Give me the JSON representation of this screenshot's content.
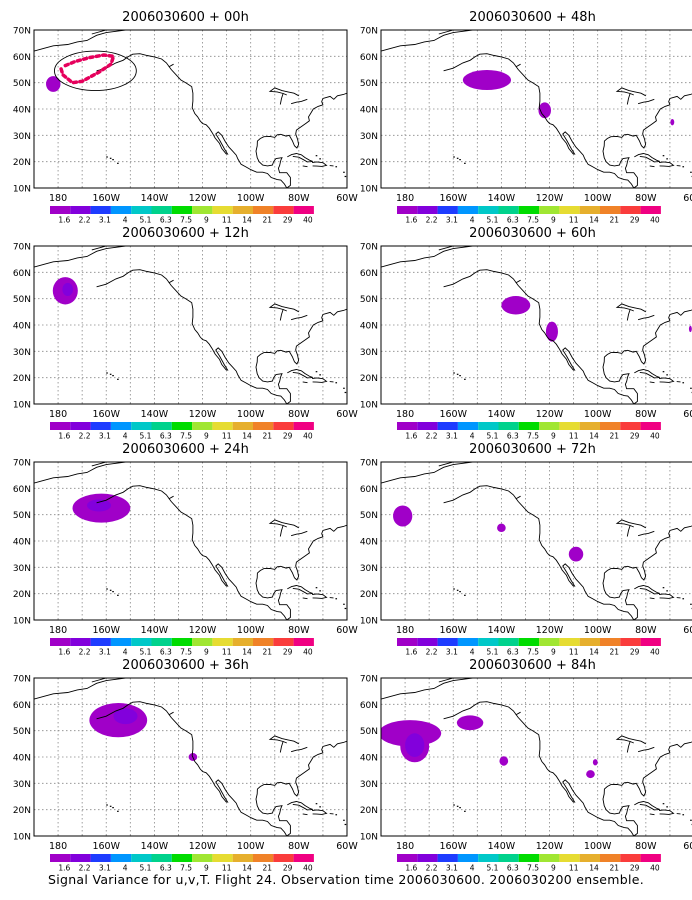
{
  "figure": {
    "caption": "Signal Variance for u,v,T. Flight 24. Observation time 2006030600. 2006030200 ensemble."
  },
  "colors": {
    "coast": "#000000",
    "grid": "#888888",
    "frame": "#000000",
    "flight_track": "#e6005c"
  },
  "chart_data": [
    {
      "type": "heatmap",
      "title": "2006030600 + 00h",
      "ylim": [
        10,
        70
      ],
      "xlim": [
        -190,
        -60
      ],
      "x_ticks": [
        "180",
        "160W",
        "140W",
        "120W",
        "100W",
        "80W",
        "60W"
      ],
      "y_ticks": [
        "10N",
        "20N",
        "30N",
        "40N",
        "50N",
        "60N",
        "70N"
      ],
      "colorbar": {
        "levels": [
          "1.6",
          "2.2",
          "3.1",
          "4",
          "5.1",
          "6.3",
          "7.5",
          "9",
          "11",
          "14",
          "21",
          "29",
          "40"
        ],
        "colors": [
          "#a000c8",
          "#8200dc",
          "#1e3cff",
          "#0096ff",
          "#00c8c8",
          "#00d28c",
          "#00dc00",
          "#a0e632",
          "#e6dc32",
          "#e6af2d",
          "#f08228",
          "#fa3c3c",
          "#f00082"
        ]
      },
      "signal_regions": [
        {
          "lon": -182,
          "lat": 49.5,
          "rx": 3,
          "ry": 3,
          "level": "1.6"
        }
      ],
      "flight_track": [
        [
          -177,
          56.5
        ],
        [
          -173,
          58
        ],
        [
          -167,
          59.5
        ],
        [
          -161,
          60.5
        ],
        [
          -157,
          60
        ],
        [
          -158,
          57
        ],
        [
          -163,
          54
        ],
        [
          -170,
          50.5
        ],
        [
          -174,
          50
        ],
        [
          -178,
          53
        ],
        [
          -179,
          56
        ]
      ],
      "outline_ellipse": {
        "lon": -164.5,
        "lat": 54.5,
        "rx": 17,
        "ry": 7.5
      }
    },
    {
      "type": "heatmap",
      "title": "2006030600 + 48h",
      "ylim": [
        10,
        70
      ],
      "xlim": [
        -190,
        -60
      ],
      "x_ticks": [
        "180",
        "160W",
        "140W",
        "120W",
        "100W",
        "80W",
        "60W"
      ],
      "y_ticks": [
        "10N",
        "20N",
        "30N",
        "40N",
        "50N",
        "60N",
        "70N"
      ],
      "colorbar": {
        "levels": [
          "1.6",
          "2.2",
          "3.1",
          "4",
          "5.1",
          "6.3",
          "7.5",
          "9",
          "11",
          "14",
          "21",
          "29",
          "40"
        ],
        "colors": [
          "#a000c8",
          "#8200dc",
          "#1e3cff",
          "#0096ff",
          "#00c8c8",
          "#00d28c",
          "#00dc00",
          "#a0e632",
          "#e6dc32",
          "#e6af2d",
          "#f08228",
          "#fa3c3c",
          "#f00082"
        ]
      },
      "signal_regions": [
        {
          "lon": -146,
          "lat": 51,
          "rx": 10,
          "ry": 3.8,
          "level": "1.6"
        },
        {
          "lon": -122,
          "lat": 39.5,
          "rx": 2.6,
          "ry": 3,
          "level": "1.6"
        },
        {
          "lon": -69,
          "lat": 35,
          "rx": 0.8,
          "ry": 1.2,
          "level": "1.6"
        }
      ]
    },
    {
      "type": "heatmap",
      "title": "2006030600 + 12h",
      "ylim": [
        10,
        70
      ],
      "xlim": [
        -190,
        -60
      ],
      "x_ticks": [
        "180",
        "160W",
        "140W",
        "120W",
        "100W",
        "80W",
        "60W"
      ],
      "y_ticks": [
        "10N",
        "20N",
        "30N",
        "40N",
        "50N",
        "60N",
        "70N"
      ],
      "colorbar": {
        "levels": [
          "1.6",
          "2.2",
          "3.1",
          "4",
          "5.1",
          "6.3",
          "7.5",
          "9",
          "11",
          "14",
          "21",
          "29",
          "40"
        ],
        "colors": [
          "#a000c8",
          "#8200dc",
          "#1e3cff",
          "#0096ff",
          "#00c8c8",
          "#00d28c",
          "#00dc00",
          "#a0e632",
          "#e6dc32",
          "#e6af2d",
          "#f08228",
          "#fa3c3c",
          "#f00082"
        ]
      },
      "signal_regions": [
        {
          "lon": -177,
          "lat": 53,
          "rx": 5.2,
          "ry": 5.2,
          "level": "1.6"
        },
        {
          "lon": -176,
          "lat": 53.5,
          "rx": 2.2,
          "ry": 2.5,
          "level": "2.2"
        }
      ]
    },
    {
      "type": "heatmap",
      "title": "2006030600 + 60h",
      "ylim": [
        10,
        70
      ],
      "xlim": [
        -190,
        -60
      ],
      "x_ticks": [
        "180",
        "160W",
        "140W",
        "120W",
        "100W",
        "80W",
        "60W"
      ],
      "y_ticks": [
        "10N",
        "20N",
        "30N",
        "40N",
        "50N",
        "60N",
        "70N"
      ],
      "colorbar": {
        "levels": [
          "1.6",
          "2.2",
          "3.1",
          "4",
          "5.1",
          "6.3",
          "7.5",
          "9",
          "11",
          "14",
          "21",
          "29",
          "40"
        ],
        "colors": [
          "#a000c8",
          "#8200dc",
          "#1e3cff",
          "#0096ff",
          "#00c8c8",
          "#00d28c",
          "#00dc00",
          "#a0e632",
          "#e6dc32",
          "#e6af2d",
          "#f08228",
          "#fa3c3c",
          "#f00082"
        ]
      },
      "signal_regions": [
        {
          "lon": -134,
          "lat": 47.5,
          "rx": 6,
          "ry": 3.5,
          "level": "1.6"
        },
        {
          "lon": -119,
          "lat": 37.5,
          "rx": 2.5,
          "ry": 3.8,
          "level": "1.6"
        },
        {
          "lon": -61.5,
          "lat": 38.5,
          "rx": 0.6,
          "ry": 1.2,
          "level": "1.6"
        }
      ]
    },
    {
      "type": "heatmap",
      "title": "2006030600 + 24h",
      "ylim": [
        10,
        70
      ],
      "xlim": [
        -190,
        -60
      ],
      "x_ticks": [
        "180",
        "160W",
        "140W",
        "120W",
        "100W",
        "80W",
        "60W"
      ],
      "y_ticks": [
        "10N",
        "20N",
        "30N",
        "40N",
        "50N",
        "60N",
        "70N"
      ],
      "colorbar": {
        "levels": [
          "1.6",
          "2.2",
          "3.1",
          "4",
          "5.1",
          "6.3",
          "7.5",
          "9",
          "11",
          "14",
          "21",
          "29",
          "40"
        ],
        "colors": [
          "#a000c8",
          "#8200dc",
          "#1e3cff",
          "#0096ff",
          "#00c8c8",
          "#00d28c",
          "#00dc00",
          "#a0e632",
          "#e6dc32",
          "#e6af2d",
          "#f08228",
          "#fa3c3c",
          "#f00082"
        ]
      },
      "signal_regions": [
        {
          "lon": -162,
          "lat": 52.5,
          "rx": 12,
          "ry": 5.5,
          "level": "1.6"
        },
        {
          "lon": -163,
          "lat": 53.5,
          "rx": 5,
          "ry": 2.3,
          "level": "2.2"
        }
      ]
    },
    {
      "type": "heatmap",
      "title": "2006030600 + 72h",
      "ylim": [
        10,
        70
      ],
      "xlim": [
        -190,
        -60
      ],
      "x_ticks": [
        "180",
        "160W",
        "140W",
        "120W",
        "100W",
        "80W",
        "60W"
      ],
      "y_ticks": [
        "10N",
        "20N",
        "30N",
        "40N",
        "50N",
        "60N",
        "70N"
      ],
      "colorbar": {
        "levels": [
          "1.6",
          "2.2",
          "3.1",
          "4",
          "5.1",
          "6.3",
          "7.5",
          "9",
          "11",
          "14",
          "21",
          "29",
          "40"
        ],
        "colors": [
          "#a000c8",
          "#8200dc",
          "#1e3cff",
          "#0096ff",
          "#00c8c8",
          "#00d28c",
          "#00dc00",
          "#a0e632",
          "#e6dc32",
          "#e6af2d",
          "#f08228",
          "#fa3c3c",
          "#f00082"
        ]
      },
      "signal_regions": [
        {
          "lon": -181,
          "lat": 49.5,
          "rx": 4,
          "ry": 4,
          "level": "1.6"
        },
        {
          "lon": -140,
          "lat": 45,
          "rx": 1.8,
          "ry": 1.6,
          "level": "1.6"
        },
        {
          "lon": -109,
          "lat": 35,
          "rx": 3,
          "ry": 2.8,
          "level": "1.6"
        }
      ]
    },
    {
      "type": "heatmap",
      "title": "2006030600 + 36h",
      "ylim": [
        10,
        70
      ],
      "xlim": [
        -190,
        -60
      ],
      "x_ticks": [
        "180",
        "160W",
        "140W",
        "120W",
        "100W",
        "80W",
        "60W"
      ],
      "y_ticks": [
        "10N",
        "20N",
        "30N",
        "40N",
        "50N",
        "60N",
        "70N"
      ],
      "colorbar": {
        "levels": [
          "1.6",
          "2.2",
          "3.1",
          "4",
          "5.1",
          "6.3",
          "7.5",
          "9",
          "11",
          "14",
          "21",
          "29",
          "40"
        ],
        "colors": [
          "#a000c8",
          "#8200dc",
          "#1e3cff",
          "#0096ff",
          "#00c8c8",
          "#00d28c",
          "#00dc00",
          "#a0e632",
          "#e6dc32",
          "#e6af2d",
          "#f08228",
          "#fa3c3c",
          "#f00082"
        ]
      },
      "signal_regions": [
        {
          "lon": -155,
          "lat": 54,
          "rx": 12,
          "ry": 6.5,
          "level": "1.6"
        },
        {
          "lon": -152,
          "lat": 55.5,
          "rx": 5,
          "ry": 3,
          "level": "2.2"
        },
        {
          "lon": -124,
          "lat": 40,
          "rx": 1.8,
          "ry": 1.5,
          "level": "1.6"
        }
      ]
    },
    {
      "type": "heatmap",
      "title": "2006030600 + 84h",
      "ylim": [
        10,
        70
      ],
      "xlim": [
        -190,
        -60
      ],
      "x_ticks": [
        "180",
        "160W",
        "140W",
        "120W",
        "100W",
        "80W",
        "60W"
      ],
      "y_ticks": [
        "10N",
        "20N",
        "30N",
        "40N",
        "50N",
        "60N",
        "70N"
      ],
      "colorbar": {
        "levels": [
          "1.6",
          "2.2",
          "3.1",
          "4",
          "5.1",
          "6.3",
          "7.5",
          "9",
          "11",
          "14",
          "21",
          "29",
          "40"
        ],
        "colors": [
          "#a000c8",
          "#8200dc",
          "#1e3cff",
          "#0096ff",
          "#00c8c8",
          "#00d28c",
          "#00dc00",
          "#a0e632",
          "#e6dc32",
          "#e6af2d",
          "#f08228",
          "#fa3c3c",
          "#f00082"
        ]
      },
      "signal_regions": [
        {
          "lon": -178,
          "lat": 49,
          "rx": 13,
          "ry": 5,
          "level": "1.6"
        },
        {
          "lon": -176,
          "lat": 44,
          "rx": 6,
          "ry": 6,
          "level": "1.6"
        },
        {
          "lon": -153,
          "lat": 53,
          "rx": 5.5,
          "ry": 2.8,
          "level": "1.6"
        },
        {
          "lon": -176,
          "lat": 44.5,
          "rx": 4,
          "ry": 4.5,
          "level": "2.2"
        },
        {
          "lon": -139,
          "lat": 38.5,
          "rx": 1.8,
          "ry": 1.8,
          "level": "1.6"
        },
        {
          "lon": -103,
          "lat": 33.5,
          "rx": 1.8,
          "ry": 1.5,
          "level": "1.6"
        },
        {
          "lon": -101,
          "lat": 38,
          "rx": 1,
          "ry": 1.2,
          "level": "1.6"
        }
      ]
    }
  ]
}
